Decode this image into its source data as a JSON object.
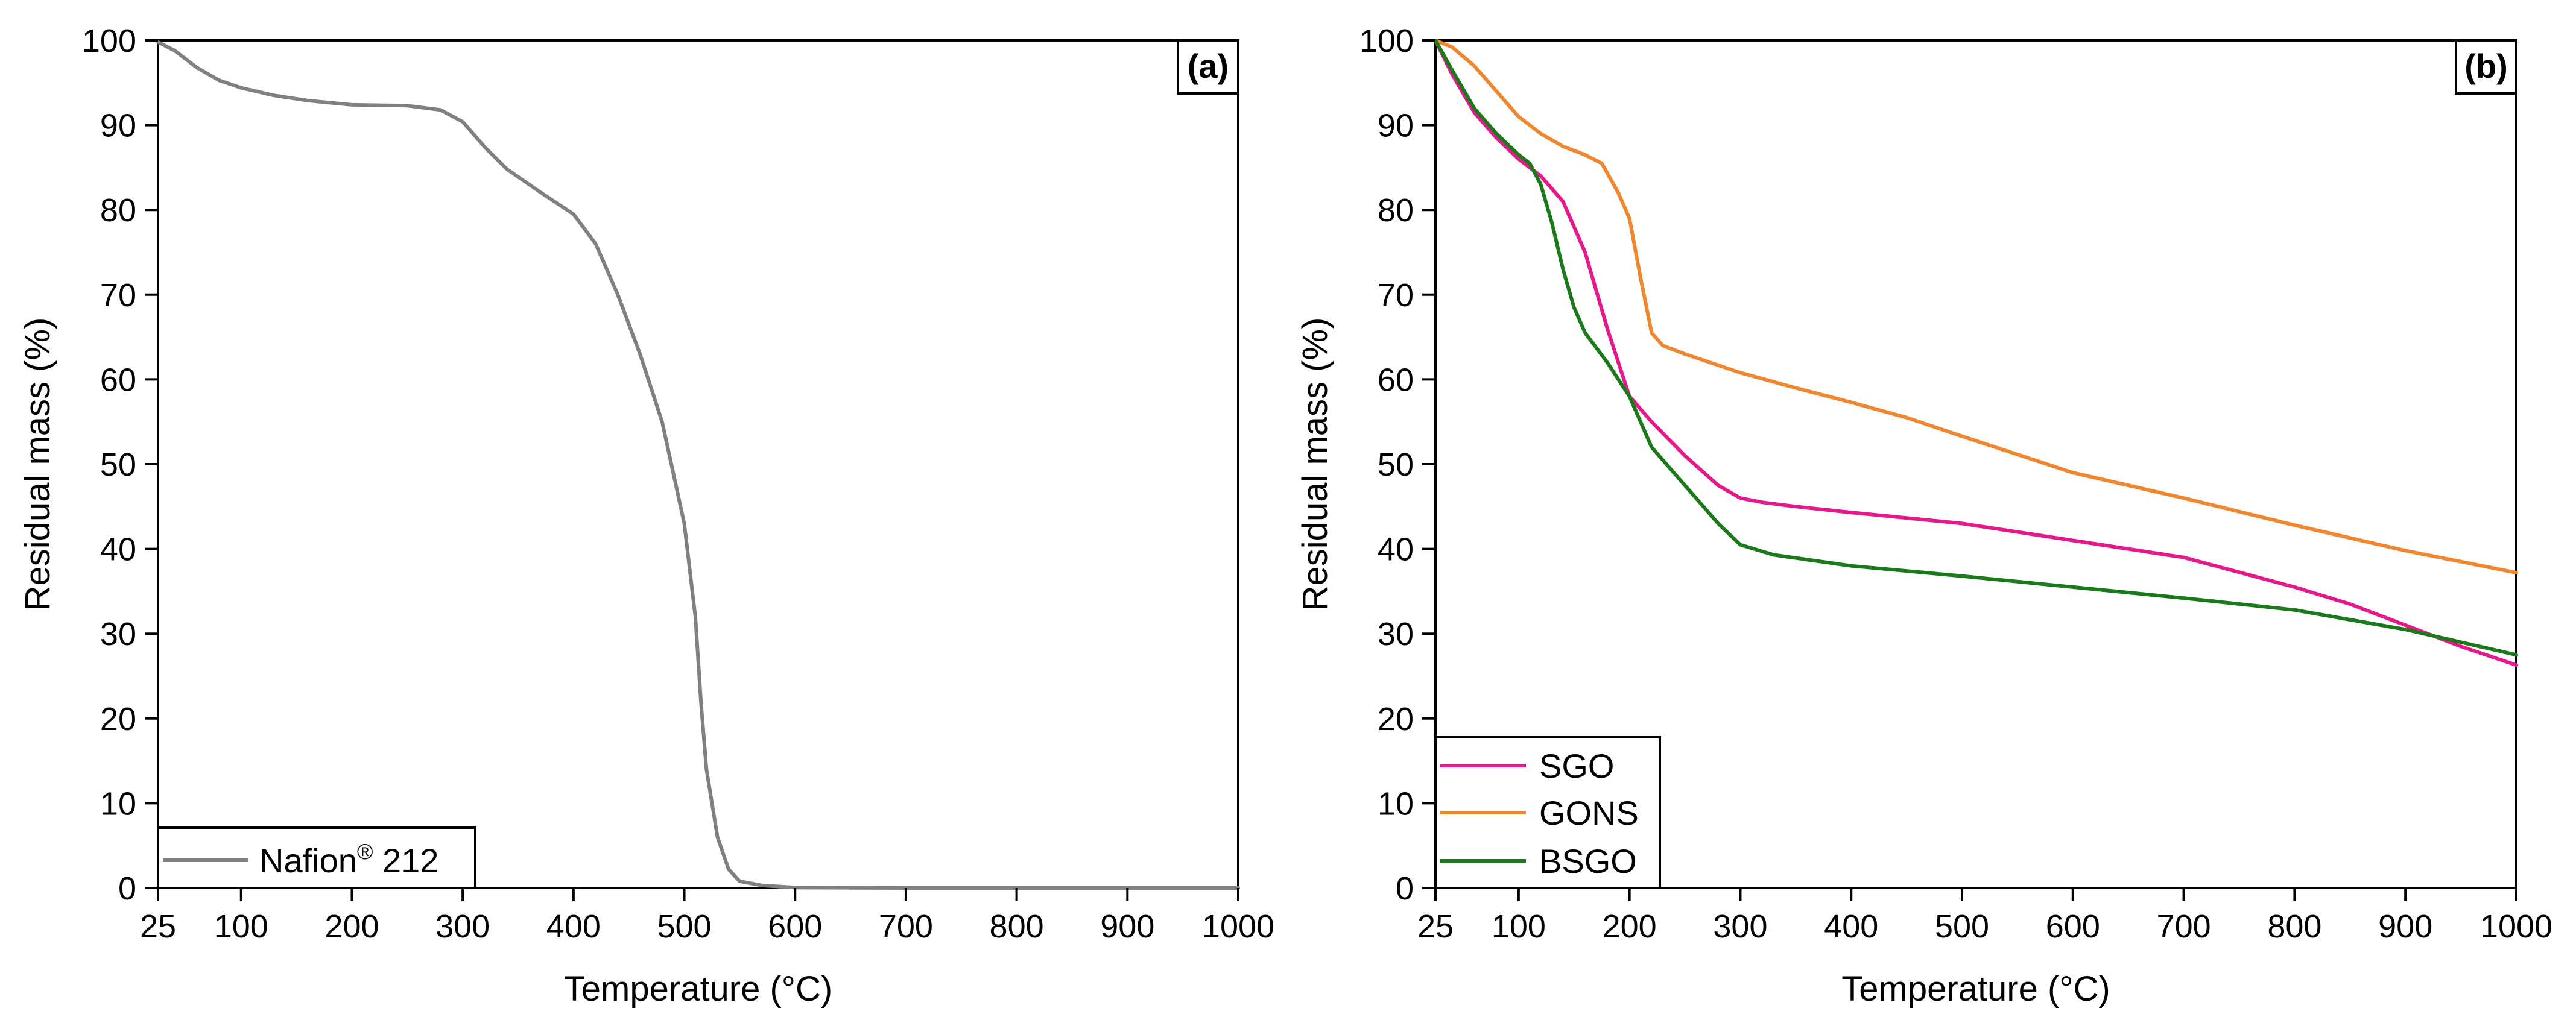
{
  "chart_data": [
    {
      "type": "line",
      "panel_label": "(a)",
      "xlabel": "Temperature (°C)",
      "ylabel": "Residual mass (%)",
      "xlim": [
        25,
        1000
      ],
      "ylim": [
        0,
        100
      ],
      "xticks": [
        25,
        100,
        200,
        300,
        400,
        500,
        600,
        700,
        800,
        900,
        1000
      ],
      "yticks": [
        0,
        10,
        20,
        30,
        40,
        50,
        60,
        70,
        80,
        90,
        100
      ],
      "grid": false,
      "legend_position": "bottom-left",
      "series": [
        {
          "name": "Nafion® 212",
          "legend_base": "Nafion",
          "legend_sup": "®",
          "legend_suffix": " 212",
          "color": "#808080",
          "x": [
            25,
            40,
            60,
            80,
            100,
            130,
            160,
            200,
            250,
            280,
            300,
            320,
            340,
            370,
            400,
            420,
            440,
            460,
            480,
            500,
            510,
            515,
            520,
            530,
            540,
            550,
            570,
            600,
            700,
            800,
            900,
            1000
          ],
          "y": [
            99.8,
            98.8,
            96.8,
            95.3,
            94.4,
            93.5,
            92.9,
            92.4,
            92.3,
            91.8,
            90.4,
            87.4,
            84.8,
            82.1,
            79.5,
            76,
            70,
            63,
            55,
            43,
            32,
            22,
            14,
            6,
            2.2,
            0.8,
            0.3,
            0.05,
            0,
            0,
            0,
            0
          ]
        }
      ]
    },
    {
      "type": "line",
      "panel_label": "(b)",
      "xlabel": "Temperature (°C)",
      "ylabel": "Residual mass (%)",
      "xlim": [
        25,
        1000
      ],
      "ylim": [
        0,
        100
      ],
      "xticks": [
        25,
        100,
        200,
        300,
        400,
        500,
        600,
        700,
        800,
        900,
        1000
      ],
      "yticks": [
        0,
        10,
        20,
        30,
        40,
        50,
        60,
        70,
        80,
        90,
        100
      ],
      "grid": false,
      "legend_position": "bottom-left",
      "series": [
        {
          "name": "SGO",
          "color": "#e5198c",
          "x": [
            25,
            40,
            60,
            80,
            100,
            120,
            140,
            160,
            180,
            200,
            220,
            250,
            280,
            300,
            320,
            350,
            400,
            500,
            600,
            700,
            800,
            850,
            900,
            950,
            1000
          ],
          "y": [
            100,
            96,
            91.5,
            88.5,
            86,
            84,
            81,
            75,
            66,
            58,
            55,
            51,
            47.5,
            46,
            45.5,
            45,
            44.3,
            43,
            41,
            39,
            35.5,
            33.5,
            31,
            28.5,
            26.3
          ]
        },
        {
          "name": "GONS",
          "color": "#f0862d",
          "x": [
            25,
            40,
            60,
            80,
            100,
            120,
            140,
            160,
            175,
            190,
            200,
            210,
            220,
            230,
            250,
            300,
            350,
            400,
            450,
            500,
            600,
            700,
            800,
            900,
            1000
          ],
          "y": [
            100,
            99.2,
            97,
            94,
            91,
            89,
            87.5,
            86.5,
            85.5,
            82,
            79,
            72,
            65.5,
            64,
            63,
            60.8,
            59,
            57.3,
            55.5,
            53.3,
            49,
            46,
            42.8,
            39.8,
            37.2
          ]
        },
        {
          "name": "BSGO",
          "color": "#1a7a1a",
          "x": [
            25,
            40,
            60,
            80,
            100,
            110,
            120,
            130,
            140,
            150,
            160,
            180,
            200,
            220,
            250,
            280,
            300,
            330,
            400,
            500,
            600,
            700,
            800,
            900,
            1000
          ],
          "y": [
            100,
            96.5,
            92,
            89,
            86.5,
            85.5,
            83,
            78.5,
            73,
            68.5,
            65.5,
            62,
            58,
            52,
            47.5,
            43,
            40.5,
            39.3,
            38,
            36.8,
            35.5,
            34.2,
            32.8,
            30.5,
            27.5
          ]
        }
      ]
    }
  ]
}
